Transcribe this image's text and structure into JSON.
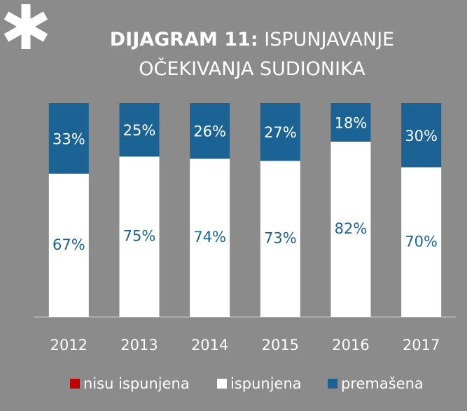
{
  "chart_data": {
    "type": "stacked_bar",
    "title_label": "DIJAGRAM 11:",
    "title": "ISPUNJAVANJE OČEKIVANJA SUDIONIKA",
    "categories": [
      "2012",
      "2013",
      "2014",
      "2015",
      "2016",
      "2017"
    ],
    "series": [
      {
        "name": "nisu ispunjena",
        "color": "#c00000",
        "values": [
          0,
          0,
          0,
          0,
          0,
          0
        ]
      },
      {
        "name": "ispunjena",
        "color": "#ffffff",
        "values": [
          67,
          75,
          74,
          73,
          82,
          70
        ],
        "value_labels": [
          "67%",
          "75%",
          "74%",
          "73%",
          "82%",
          "70%"
        ]
      },
      {
        "name": "premašena",
        "color": "#1b6395",
        "values": [
          33,
          25,
          26,
          27,
          18,
          30
        ],
        "value_labels": [
          "33%",
          "25%",
          "26%",
          "27%",
          "18%",
          "30%"
        ]
      }
    ]
  }
}
